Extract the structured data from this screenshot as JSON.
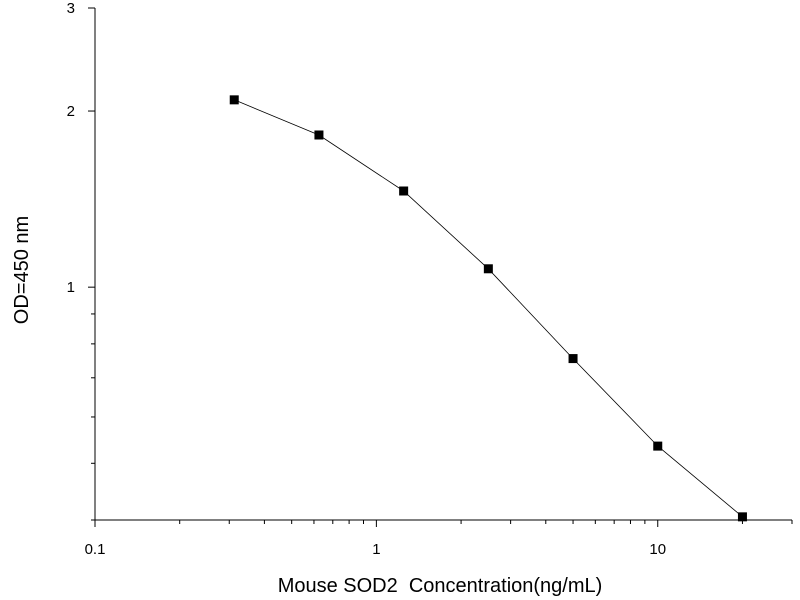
{
  "chart_data": {
    "type": "line",
    "title": "",
    "xlabel": "Mouse SOD2  Concentration(ng/mL)",
    "ylabel": "OD=450 nm",
    "x_scale": "log",
    "y_scale": "log",
    "xlim": [
      0.1,
      30
    ],
    "ylim": [
      0.4,
      3
    ],
    "x_ticks": [
      {
        "value": 0.1,
        "label": "0.1"
      },
      {
        "value": 1,
        "label": "1"
      },
      {
        "value": 10,
        "label": "10"
      }
    ],
    "y_ticks": [
      {
        "value": 1,
        "label": "1"
      },
      {
        "value": 2,
        "label": "2"
      },
      {
        "value": 3,
        "label": "3"
      }
    ],
    "grid": false,
    "legend": "none",
    "series": [
      {
        "marker": "square",
        "color": "#000000",
        "x": [
          0.3125,
          0.625,
          1.25,
          2.5,
          5,
          10,
          20
        ],
        "y": [
          2.09,
          1.82,
          1.46,
          1.075,
          0.755,
          0.535,
          0.405
        ]
      }
    ]
  }
}
